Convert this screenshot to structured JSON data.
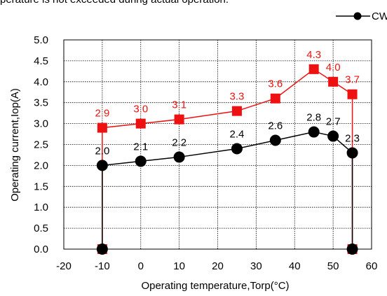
{
  "caption_text": "perature is not exceeded during actual operation.",
  "chart_data": {
    "type": "line",
    "xlabel": "Operating temperature,Torp(°C)",
    "ylabel": "Operating current,Iop(A)",
    "xlim": [
      -20,
      60
    ],
    "ylim": [
      0.0,
      5.0
    ],
    "x_ticks": [
      "-20",
      "-10",
      "0",
      "10",
      "20",
      "30",
      "40",
      "50",
      "60"
    ],
    "y_ticks": [
      "0.0",
      "0.5",
      "1.0",
      "1.5",
      "2.0",
      "2.5",
      "3.0",
      "3.5",
      "4.0",
      "4.5",
      "5.0"
    ],
    "grid": true,
    "legend_position": "top-right",
    "series": [
      {
        "name": "CW",
        "color": "#000000",
        "marker": "circle",
        "points": [
          [
            -10,
            0.0
          ],
          [
            -10,
            2.0
          ],
          [
            0,
            2.1
          ],
          [
            10,
            2.2
          ],
          [
            25,
            2.4
          ],
          [
            35,
            2.6
          ],
          [
            45,
            2.8
          ],
          [
            50,
            2.7
          ],
          [
            55,
            2.3
          ],
          [
            55,
            0.0
          ]
        ],
        "labels": [
          "2.0",
          "2.1",
          "2.2",
          "2.4",
          "2.6",
          "2.8",
          "2.7",
          "2.3"
        ]
      },
      {
        "color": "#ee1111",
        "marker": "square",
        "points": [
          [
            -10,
            0.0
          ],
          [
            -10,
            2.9
          ],
          [
            0,
            3.0
          ],
          [
            10,
            3.1
          ],
          [
            25,
            3.3
          ],
          [
            35,
            3.6
          ],
          [
            45,
            4.3
          ],
          [
            50,
            4.0
          ],
          [
            55,
            3.7
          ],
          [
            55,
            0.0
          ]
        ],
        "labels": [
          "2.9",
          "3.0",
          "3.1",
          "3.3",
          "3.6",
          "4.3",
          "4.0",
          "3.7"
        ]
      }
    ]
  }
}
